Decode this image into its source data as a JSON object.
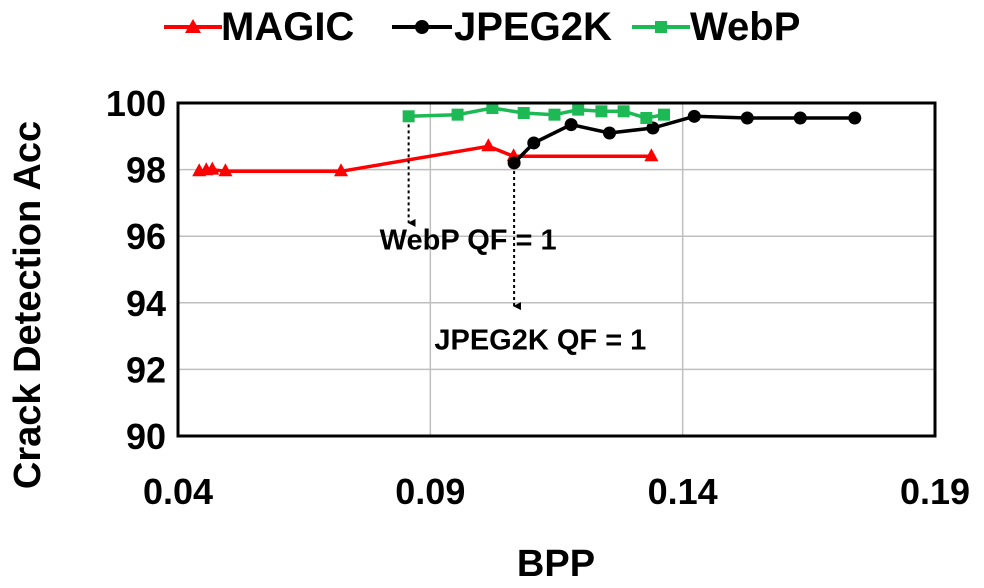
{
  "chart_data": {
    "type": "line",
    "title": "",
    "xlabel": "BPP",
    "ylabel": "Crack Detection Acc",
    "xlim": [
      0.04,
      0.19
    ],
    "ylim": [
      90,
      100
    ],
    "xticks": [
      "0.04",
      "0.09",
      "0.14",
      "0.19"
    ],
    "yticks": [
      "90",
      "92",
      "94",
      "96",
      "98",
      "100"
    ],
    "grid": true,
    "legend_position": "top",
    "series": [
      {
        "name": "MAGIC",
        "color": "#ff0000",
        "marker": "triangle",
        "x": [
          0.0442,
          0.0456,
          0.0468,
          0.0494,
          0.0723,
          0.1015,
          0.1065,
          0.1338
        ],
        "y": [
          97.95,
          97.98,
          98.0,
          97.95,
          97.95,
          98.7,
          98.4,
          98.4
        ]
      },
      {
        "name": "JPEG2K",
        "color": "#000000",
        "marker": "circle",
        "x": [
          0.1066,
          0.1105,
          0.1179,
          0.1255,
          0.1341,
          0.1423,
          0.1528,
          0.1633,
          0.1741
        ],
        "y": [
          98.2,
          98.8,
          99.35,
          99.1,
          99.25,
          99.6,
          99.55,
          99.55,
          99.55
        ]
      },
      {
        "name": "WebP",
        "color": "#1db954",
        "marker": "square",
        "x": [
          0.0857,
          0.0954,
          0.1023,
          0.1085,
          0.1146,
          0.1193,
          0.1239,
          0.1283,
          0.1328,
          0.1363
        ],
        "y": [
          99.6,
          99.65,
          99.85,
          99.7,
          99.65,
          99.8,
          99.75,
          99.75,
          99.55,
          99.65
        ]
      }
    ],
    "annotations": [
      {
        "text": "WebP QF = 1",
        "arrow_from": [
          0.0857,
          99.6
        ],
        "arrow_to": [
          0.0857,
          96.4
        ],
        "text_at": [
          0.0975,
          95.9
        ]
      },
      {
        "text": "JPEG2K QF = 1",
        "arrow_from": [
          0.1066,
          98.2
        ],
        "arrow_to": [
          0.1066,
          93.9
        ],
        "text_at": [
          0.1118,
          92.9
        ]
      }
    ]
  }
}
